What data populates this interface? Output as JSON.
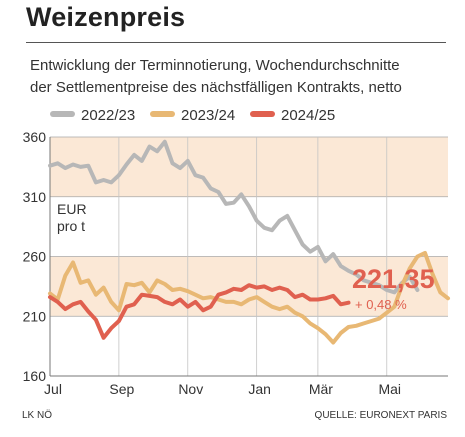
{
  "header": {
    "title": "Weizenpreis",
    "subtitle_line1": "Entwicklung der Terminnotierung, Wochendurchschnitte",
    "subtitle_line2": "der Settlementpreise des nächstfälligen Kontrakts, netto"
  },
  "footer": {
    "left": "LK NÖ",
    "right": "QUELLE: EURONEXT PARIS"
  },
  "chart_data": {
    "type": "line",
    "unit_label": [
      "EUR",
      "pro t"
    ],
    "ylim": [
      160,
      360
    ],
    "yticks": [
      160,
      210,
      260,
      310,
      360
    ],
    "x_domain": [
      0,
      52
    ],
    "x_tick_labels": [
      {
        "label": "Jul",
        "week": 0
      },
      {
        "label": "Sep",
        "week": 9
      },
      {
        "label": "Nov",
        "week": 18
      },
      {
        "label": "Jan",
        "week": 27
      },
      {
        "label": "Mär",
        "week": 35
      },
      {
        "label": "Mai",
        "week": 44
      }
    ],
    "shaded_bands": [
      [
        310,
        360
      ],
      [
        210,
        260
      ]
    ],
    "grid": true,
    "legend_position": "top",
    "last_value_label": "221,35",
    "last_change_label": "+ 0,48 %",
    "colors": {
      "2022/23": "#b7b7b7",
      "2023/24": "#e8b874",
      "2024/25": "#e0604f",
      "band": "#fbe8d6"
    },
    "series": [
      {
        "name": "2022/23",
        "values": [
          336,
          338,
          334,
          337,
          335,
          336,
          322,
          324,
          322,
          328,
          337,
          345,
          340,
          352,
          348,
          356,
          338,
          334,
          340,
          328,
          326,
          317,
          314,
          304,
          305,
          312,
          302,
          290,
          284,
          282,
          290,
          294,
          282,
          270,
          264,
          268,
          256,
          262,
          252,
          248,
          245,
          240,
          238,
          236,
          232,
          230,
          238,
          243,
          232
        ]
      },
      {
        "name": "2023/24",
        "values": [
          229,
          224,
          244,
          255,
          238,
          240,
          228,
          234,
          222,
          215,
          237,
          236,
          238,
          230,
          240,
          237,
          232,
          233,
          231,
          228,
          225,
          226,
          224,
          222,
          222,
          220,
          224,
          226,
          222,
          218,
          216,
          218,
          213,
          210,
          204,
          200,
          195,
          188,
          196,
          201,
          202,
          204,
          206,
          208,
          213,
          218,
          236,
          250,
          260,
          263,
          245,
          230,
          225
        ]
      },
      {
        "name": "2024/25",
        "values": [
          226,
          222,
          216,
          220,
          222,
          214,
          207,
          192,
          200,
          206,
          218,
          220,
          228,
          227,
          226,
          222,
          220,
          224,
          218,
          222,
          215,
          218,
          228,
          230,
          233,
          232,
          236,
          234,
          235,
          232,
          234,
          232,
          226,
          228,
          224,
          224,
          225,
          227,
          220,
          221.35
        ]
      }
    ]
  }
}
